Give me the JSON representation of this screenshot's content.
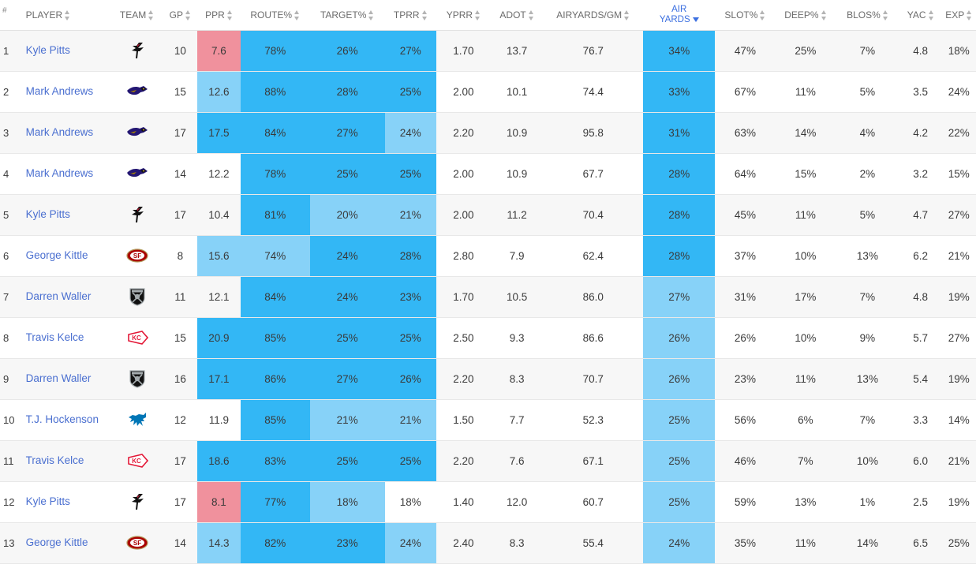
{
  "headers": {
    "rank": "#",
    "player": "PLAYER",
    "team": "TEAM",
    "gp": "GP",
    "ppr": "PPR",
    "route": "ROUTE%",
    "target": "TARGET%",
    "tprr": "TPRR",
    "yprr": "YPRR",
    "adot": "ADOT",
    "airyards_gm": "AIRYARDS/GM",
    "air_yards_line1": "AIR",
    "air_yards_line2": "YARDS",
    "slot": "SLOT%",
    "deep": "DEEP%",
    "blos": "BLOS%",
    "yac": "YAC",
    "exp": "EXP"
  },
  "sort": {
    "column": "air_yards",
    "direction": "descending",
    "active_color": "#3b6fe0"
  },
  "colors": {
    "dark_blue": "#33b7f5",
    "light_blue": "#87d2f8",
    "pink": "#f0919d",
    "link": "#4a6fd0"
  },
  "rows": [
    {
      "rank": "1",
      "player": "Kyle Pitts",
      "team_logo": "falcons-logo",
      "gp": "10",
      "ppr": "7.6",
      "route": "78%",
      "target": "26%",
      "tprr": "27%",
      "yprr": "1.70",
      "adot": "13.7",
      "airyards_gm": "76.7",
      "air_yards": "34%",
      "slot": "47%",
      "deep": "25%",
      "blos": "7%",
      "yac": "4.8",
      "exp": "18%"
    },
    {
      "rank": "2",
      "player": "Mark Andrews",
      "team_logo": "ravens-logo",
      "gp": "15",
      "ppr": "12.6",
      "route": "88%",
      "target": "28%",
      "tprr": "25%",
      "yprr": "2.00",
      "adot": "10.1",
      "airyards_gm": "74.4",
      "air_yards": "33%",
      "slot": "67%",
      "deep": "11%",
      "blos": "5%",
      "yac": "3.5",
      "exp": "24%"
    },
    {
      "rank": "3",
      "player": "Mark Andrews",
      "team_logo": "ravens-logo",
      "gp": "17",
      "ppr": "17.5",
      "route": "84%",
      "target": "27%",
      "tprr": "24%",
      "yprr": "2.20",
      "adot": "10.9",
      "airyards_gm": "95.8",
      "air_yards": "31%",
      "slot": "63%",
      "deep": "14%",
      "blos": "4%",
      "yac": "4.2",
      "exp": "22%"
    },
    {
      "rank": "4",
      "player": "Mark Andrews",
      "team_logo": "ravens-logo",
      "gp": "14",
      "ppr": "12.2",
      "route": "78%",
      "target": "25%",
      "tprr": "25%",
      "yprr": "2.00",
      "adot": "10.9",
      "airyards_gm": "67.7",
      "air_yards": "28%",
      "slot": "64%",
      "deep": "15%",
      "blos": "2%",
      "yac": "3.2",
      "exp": "15%"
    },
    {
      "rank": "5",
      "player": "Kyle Pitts",
      "team_logo": "falcons-logo",
      "gp": "17",
      "ppr": "10.4",
      "route": "81%",
      "target": "20%",
      "tprr": "21%",
      "yprr": "2.00",
      "adot": "11.2",
      "airyards_gm": "70.4",
      "air_yards": "28%",
      "slot": "45%",
      "deep": "11%",
      "blos": "5%",
      "yac": "4.7",
      "exp": "27%"
    },
    {
      "rank": "6",
      "player": "George Kittle",
      "team_logo": "49ers-logo",
      "gp": "8",
      "ppr": "15.6",
      "route": "74%",
      "target": "24%",
      "tprr": "28%",
      "yprr": "2.80",
      "adot": "7.9",
      "airyards_gm": "62.4",
      "air_yards": "28%",
      "slot": "37%",
      "deep": "10%",
      "blos": "13%",
      "yac": "6.2",
      "exp": "21%"
    },
    {
      "rank": "7",
      "player": "Darren Waller",
      "team_logo": "raiders-logo",
      "gp": "11",
      "ppr": "12.1",
      "route": "84%",
      "target": "24%",
      "tprr": "23%",
      "yprr": "1.70",
      "adot": "10.5",
      "airyards_gm": "86.0",
      "air_yards": "27%",
      "slot": "31%",
      "deep": "17%",
      "blos": "7%",
      "yac": "4.8",
      "exp": "19%"
    },
    {
      "rank": "8",
      "player": "Travis Kelce",
      "team_logo": "chiefs-logo",
      "gp": "15",
      "ppr": "20.9",
      "route": "85%",
      "target": "25%",
      "tprr": "25%",
      "yprr": "2.50",
      "adot": "9.3",
      "airyards_gm": "86.6",
      "air_yards": "26%",
      "slot": "26%",
      "deep": "10%",
      "blos": "9%",
      "yac": "5.7",
      "exp": "27%"
    },
    {
      "rank": "9",
      "player": "Darren Waller",
      "team_logo": "raiders-logo",
      "gp": "16",
      "ppr": "17.1",
      "route": "86%",
      "target": "27%",
      "tprr": "26%",
      "yprr": "2.20",
      "adot": "8.3",
      "airyards_gm": "70.7",
      "air_yards": "26%",
      "slot": "23%",
      "deep": "11%",
      "blos": "13%",
      "yac": "5.4",
      "exp": "19%"
    },
    {
      "rank": "10",
      "player": "T.J. Hockenson",
      "team_logo": "lions-logo",
      "gp": "12",
      "ppr": "11.9",
      "route": "85%",
      "target": "21%",
      "tprr": "21%",
      "yprr": "1.50",
      "adot": "7.7",
      "airyards_gm": "52.3",
      "air_yards": "25%",
      "slot": "56%",
      "deep": "6%",
      "blos": "7%",
      "yac": "3.3",
      "exp": "14%"
    },
    {
      "rank": "11",
      "player": "Travis Kelce",
      "team_logo": "chiefs-logo",
      "gp": "17",
      "ppr": "18.6",
      "route": "83%",
      "target": "25%",
      "tprr": "25%",
      "yprr": "2.20",
      "adot": "7.6",
      "airyards_gm": "67.1",
      "air_yards": "25%",
      "slot": "46%",
      "deep": "7%",
      "blos": "10%",
      "yac": "6.0",
      "exp": "21%"
    },
    {
      "rank": "12",
      "player": "Kyle Pitts",
      "team_logo": "falcons-logo",
      "gp": "17",
      "ppr": "8.1",
      "route": "77%",
      "target": "18%",
      "tprr": "18%",
      "yprr": "1.40",
      "adot": "12.0",
      "airyards_gm": "60.7",
      "air_yards": "25%",
      "slot": "59%",
      "deep": "13%",
      "blos": "1%",
      "yac": "2.5",
      "exp": "19%"
    },
    {
      "rank": "13",
      "player": "George Kittle",
      "team_logo": "49ers-logo",
      "gp": "14",
      "ppr": "14.3",
      "route": "82%",
      "target": "23%",
      "tprr": "24%",
      "yprr": "2.40",
      "adot": "8.3",
      "airyards_gm": "55.4",
      "air_yards": "24%",
      "slot": "35%",
      "deep": "11%",
      "blos": "14%",
      "yac": "6.5",
      "exp": "25%"
    }
  ]
}
